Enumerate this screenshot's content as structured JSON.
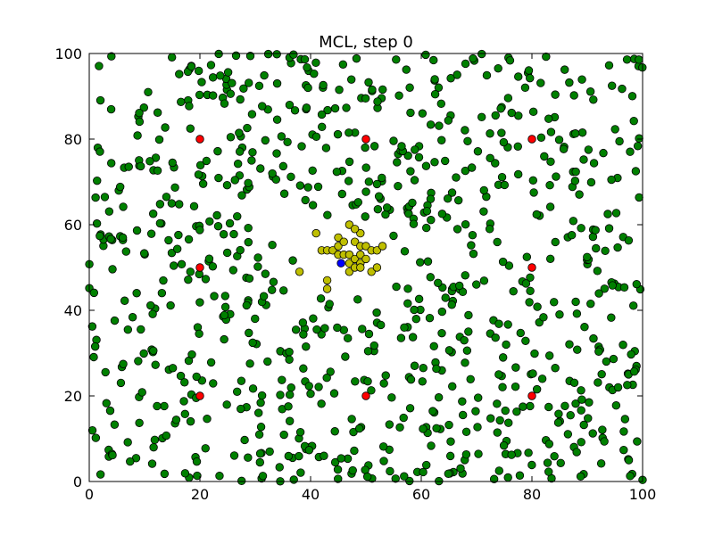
{
  "chart_data": {
    "type": "scatter",
    "title": "MCL, step 0",
    "xlabel": "",
    "ylabel": "",
    "xlim": [
      0,
      100
    ],
    "ylim": [
      0,
      100
    ],
    "xticks": [
      0,
      20,
      40,
      60,
      80,
      100
    ],
    "yticks": [
      0,
      20,
      40,
      60,
      80,
      100
    ],
    "grid": false,
    "colors": {
      "particles": "#008000",
      "cluster": "#bfbf00",
      "landmarks": "#ff0000",
      "robot": "#0000ff",
      "marker_edge": "#000000"
    },
    "series": [
      {
        "role": "landmarks",
        "points": [
          [
            20,
            80
          ],
          [
            50,
            80
          ],
          [
            80,
            80
          ],
          [
            20,
            50
          ],
          [
            80,
            50
          ],
          [
            20,
            20
          ],
          [
            50,
            20
          ],
          [
            80,
            20
          ]
        ]
      },
      {
        "role": "cluster",
        "points": [
          [
            41,
            58
          ],
          [
            42,
            54
          ],
          [
            43,
            54
          ],
          [
            44,
            54
          ],
          [
            45,
            53
          ],
          [
            45,
            55
          ],
          [
            45,
            57
          ],
          [
            46,
            56
          ],
          [
            46,
            53
          ],
          [
            47,
            51
          ],
          [
            47,
            49
          ],
          [
            47,
            53
          ],
          [
            48,
            52
          ],
          [
            48,
            50
          ],
          [
            48,
            56
          ],
          [
            49,
            58
          ],
          [
            49,
            55
          ],
          [
            49,
            53
          ],
          [
            49,
            51
          ],
          [
            49,
            50
          ],
          [
            50,
            52
          ],
          [
            50,
            55
          ],
          [
            51,
            54
          ],
          [
            51,
            49
          ],
          [
            52,
            50
          ],
          [
            52,
            54
          ],
          [
            43,
            47
          ],
          [
            43,
            45
          ],
          [
            38,
            49
          ],
          [
            47,
            60
          ],
          [
            48,
            59
          ],
          [
            53,
            55
          ]
        ]
      },
      {
        "role": "robot",
        "points": [
          [
            45.5,
            51
          ]
        ]
      }
    ],
    "particle_seed": 12345,
    "particle_count": 900
  }
}
